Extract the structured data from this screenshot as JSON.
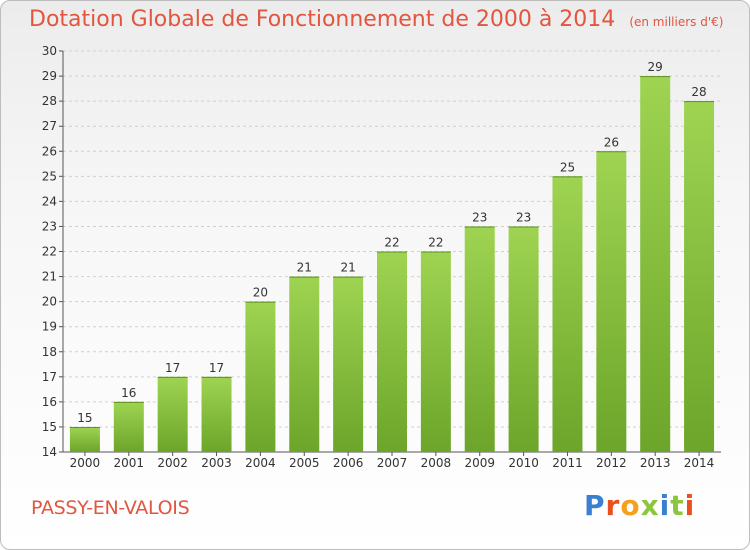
{
  "header": {
    "title": "Dotation Globale de Fonctionnement de 2000 à 2014",
    "subtitle": "(en milliers d'€)"
  },
  "footer": {
    "commune": "PASSY-EN-VALOIS",
    "logo": "Proxiti",
    "logo_colors": [
      "#3a7fd0",
      "#e8501f",
      "#f4a21c",
      "#8cc63f",
      "#3a7fd0",
      "#8cc63f",
      "#e8501f"
    ]
  },
  "chart_data": {
    "type": "bar",
    "title": "Dotation Globale de Fonctionnement de 2000 à 2014",
    "subtitle": "(en milliers d'€)",
    "categories": [
      "2000",
      "2001",
      "2002",
      "2003",
      "2004",
      "2005",
      "2006",
      "2007",
      "2008",
      "2009",
      "2010",
      "2011",
      "2012",
      "2013",
      "2014"
    ],
    "values": [
      15,
      16,
      17,
      17,
      20,
      21,
      21,
      22,
      22,
      23,
      23,
      25,
      26,
      29,
      28
    ],
    "ylim": [
      14,
      30
    ],
    "yticks": [
      14,
      15,
      16,
      17,
      18,
      19,
      20,
      21,
      22,
      23,
      24,
      25,
      26,
      27,
      28,
      29,
      30
    ],
    "grid": true,
    "bar_color_top": "#9fd452",
    "bar_color_bottom": "#6ca52a"
  }
}
